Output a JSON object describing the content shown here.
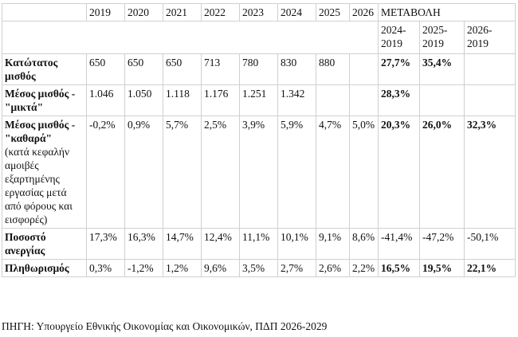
{
  "table": {
    "header": {
      "years": [
        "2019",
        "2020",
        "2021",
        "2022",
        "2023",
        "2024",
        "2025",
        "2026"
      ],
      "change_title": "ΜΕΤΑΒΟΛΗ",
      "change_periods": [
        "2024-2019",
        "2025-2019",
        "2026-2019"
      ]
    },
    "rows": [
      {
        "label": "Κατώτατος μισθός",
        "values": [
          "650",
          "650",
          "650",
          "713",
          "780",
          "830",
          "880",
          null
        ],
        "changes": [
          "27,7%",
          "35,4%",
          null
        ]
      },
      {
        "label": "Μέσος μισθός - \"μικτά\"",
        "values": [
          "1.046",
          "1.050",
          "1.118",
          "1.176",
          "1.251",
          "1.342",
          null,
          null
        ],
        "changes": [
          "28,3%",
          null,
          null
        ]
      },
      {
        "label": "Μέσος μισθός - \"καθαρά\"",
        "note": "(κατά κεφαλήν αμοιβές εξαρτημένης εργασίας μετά από φόρους και εισφορές)",
        "values": [
          "-0,2%",
          "0,9%",
          "5,7%",
          "2,5%",
          "3,9%",
          "5,9%",
          "4,7%",
          "5,0%"
        ],
        "changes": [
          "20,3%",
          "26,0%",
          "32,3%"
        ]
      },
      {
        "label": "Ποσοστό ανεργίας",
        "values": [
          "17,3%",
          "16,3%",
          "14,7%",
          "12,4%",
          "11,1%",
          "10,1%",
          "9,1%",
          "8,6%"
        ],
        "changes": [
          "-41,4%",
          "-47,2%",
          "-50,1%"
        ]
      },
      {
        "label": "Πληθωρισμός",
        "values": [
          "0,3%",
          "-1,2%",
          "1,2%",
          "9,6%",
          "3,5%",
          "2,7%",
          "2,6%",
          "2,2%"
        ],
        "changes": [
          "16,5%",
          "19,5%",
          "22,1%"
        ]
      }
    ]
  },
  "source": "ΠΗΓΗ: Υπουργείο Εθνικής Οικονομίας και Οικονομικών, ΠΔΠ 2026-2029"
}
